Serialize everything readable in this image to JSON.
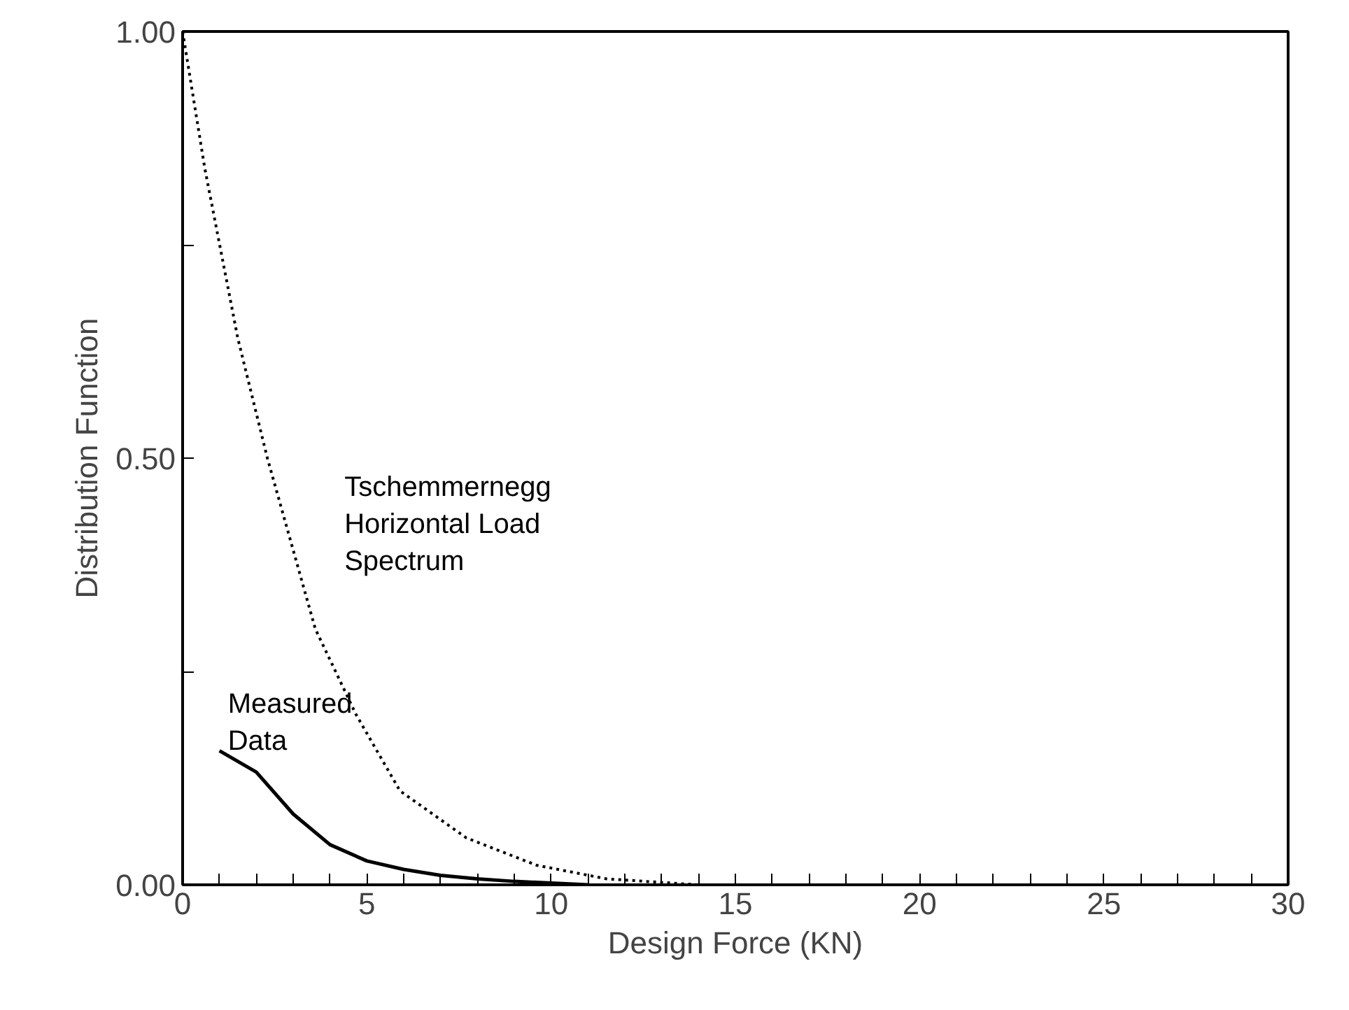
{
  "chart_data": {
    "type": "line",
    "xlabel": "Design Force (KN)",
    "ylabel": "Distribution Function",
    "xlim": [
      0,
      30
    ],
    "ylim": [
      0,
      1
    ],
    "xticks": [
      0,
      {
        "value": 1,
        "label": null
      },
      {
        "value": 2,
        "label": null
      },
      {
        "value": 3,
        "label": null
      },
      {
        "value": 4,
        "label": null
      },
      5,
      {
        "value": 6,
        "label": null
      },
      {
        "value": 7,
        "label": null
      },
      {
        "value": 8,
        "label": null
      },
      {
        "value": 9,
        "label": null
      },
      10,
      {
        "value": 11,
        "label": null
      },
      {
        "value": 12,
        "label": null
      },
      {
        "value": 13,
        "label": null
      },
      {
        "value": 14,
        "label": null
      },
      15,
      {
        "value": 16,
        "label": null
      },
      {
        "value": 17,
        "label": null
      },
      {
        "value": 18,
        "label": null
      },
      {
        "value": 19,
        "label": null
      },
      20,
      {
        "value": 21,
        "label": null
      },
      {
        "value": 22,
        "label": null
      },
      {
        "value": 23,
        "label": null
      },
      {
        "value": 24,
        "label": null
      },
      25,
      {
        "value": 26,
        "label": null
      },
      {
        "value": 27,
        "label": null
      },
      {
        "value": 28,
        "label": null
      },
      {
        "value": 29,
        "label": null
      },
      30
    ],
    "yticks": [
      {
        "value": 0,
        "label": "0.00"
      },
      {
        "value": 0.25,
        "label": null
      },
      {
        "value": 0.5,
        "label": "0.50"
      },
      {
        "value": 0.75,
        "label": null
      },
      {
        "value": 1,
        "label": "1.00"
      }
    ],
    "grid": false,
    "marker": "none",
    "series": [
      {
        "name": "Tschemmernegg\nHorizontal Load\n  Spectrum",
        "color": "#000000",
        "line_style": "dotted",
        "x": [
          0,
          0.6,
          1.5,
          2.3,
          3.6,
          4.7,
          5.9,
          7.7,
          9.6,
          11.5,
          14
        ],
        "values": [
          1.0,
          0.84,
          0.64,
          0.5,
          0.3,
          0.2,
          0.11,
          0.055,
          0.023,
          0.007,
          0.0
        ]
      },
      {
        "name": "Measured\n   Data",
        "color": "#000000",
        "line_style": "solid",
        "x": [
          1,
          2,
          3,
          4,
          5,
          6,
          7,
          8,
          9,
          10,
          11
        ],
        "values": [
          0.157,
          0.132,
          0.083,
          0.047,
          0.028,
          0.018,
          0.011,
          0.007,
          0.004,
          0.002,
          0.0
        ]
      }
    ]
  }
}
